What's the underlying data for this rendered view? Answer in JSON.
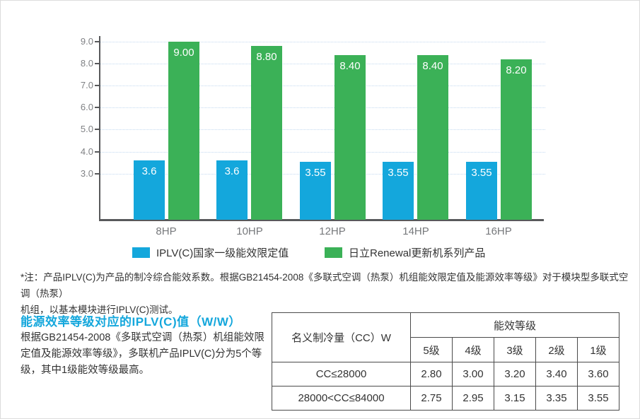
{
  "colors": {
    "blue": "#14a7dc",
    "green": "#3bb157",
    "axis": "#58595b",
    "grid": "#c3d9f0",
    "tick_text": "#7f8184",
    "body_text": "#333333",
    "table_border": "#4a4a4a"
  },
  "chart_data": {
    "type": "bar",
    "categories": [
      "8HP",
      "10HP",
      "12HP",
      "14HP",
      "16HP"
    ],
    "series": [
      {
        "name": "IPLV(C)国家一级能效限定值",
        "color_key": "blue",
        "values": [
          3.6,
          3.6,
          3.55,
          3.55,
          3.55
        ],
        "labels": [
          "3.6",
          "3.6",
          "3.55",
          "3.55",
          "3.55"
        ]
      },
      {
        "name": "日立Renewal更新机系列产品",
        "color_key": "green",
        "values": [
          9.0,
          8.8,
          8.4,
          8.4,
          8.2
        ],
        "labels": [
          "9.00",
          "8.80",
          "8.40",
          "8.40",
          "8.20"
        ]
      }
    ],
    "ytick_labels": [
      "9.0",
      "8.0",
      "7.0",
      "6.0",
      "5.0",
      "4.0",
      "3.0"
    ],
    "ytick_values": [
      9,
      8,
      7,
      6,
      5,
      4,
      3
    ],
    "ylim": [
      0.9,
      9.0
    ],
    "grid": true,
    "legend_position": "bottom"
  },
  "note": {
    "line1": "*注：产品IPLV(C)为产品的制冷综合能效系数。根据GB21454-2008《多联式空调（热泵）机组能效限定值及能源效率等级》对于模块型多联式空调（热泵）",
    "line2": "机组，以基本模块进行IPLV(C)测试。"
  },
  "section": {
    "title": "能源效率等级对应的IPLV(C)值（W/W）",
    "body_lines": [
      "根据GB21454-2008《多联式空调（热泵）机组能效限",
      "定值及能源效率等级》，多联机产品IPLV(C)分为5个等",
      "级，其中1级能效等级最高。"
    ]
  },
  "table": {
    "col1_header": "名义制冷量（CC）W",
    "group_header": "能效等级",
    "level_headers": [
      "5级",
      "4级",
      "3级",
      "2级",
      "1级"
    ],
    "rows": [
      {
        "label": "CC≤28000",
        "values": [
          "2.80",
          "3.00",
          "3.20",
          "3.40",
          "3.60"
        ]
      },
      {
        "label": "28000<CC≤84000",
        "values": [
          "2.75",
          "2.95",
          "3.15",
          "3.35",
          "3.55"
        ]
      }
    ]
  }
}
